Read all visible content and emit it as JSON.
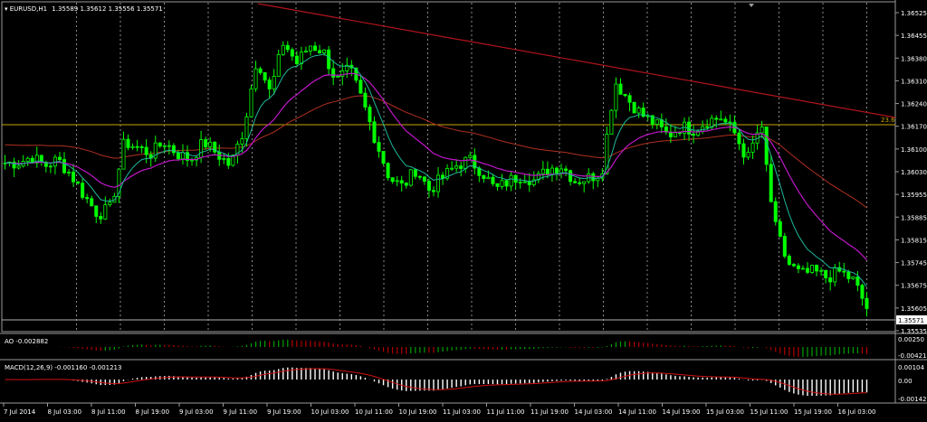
{
  "chart_header": {
    "symbol": "EURUSD,H1",
    "ohlc": "1.35589 1.35612 1.35556 1.35571"
  },
  "price_axis": {
    "labels": [
      "1.36525",
      "1.36455",
      "1.36380",
      "1.36310",
      "1.36240",
      "1.36170",
      "1.36100",
      "1.36030",
      "1.35955",
      "1.35885",
      "1.35815",
      "1.35745",
      "1.35675",
      "1.35605",
      "1.35535"
    ],
    "current_price": "1.35571"
  },
  "fib_label": "23.6",
  "ao": {
    "label": "AO -0.002882",
    "axis_labels": [
      "0.00250",
      "-0.00421"
    ]
  },
  "macd": {
    "label": "MACD(12,26,9) -0.001160 -0.001213",
    "axis_labels": [
      "0.00104",
      "0.00",
      "-0.00142"
    ]
  },
  "time_axis": {
    "labels": [
      "7 Jul 2014",
      "8 Jul 03:00",
      "8 Jul 11:00",
      "8 Jul 19:00",
      "9 Jul 03:00",
      "9 Jul 11:00",
      "9 Jul 19:00",
      "10 Jul 03:00",
      "10 Jul 11:00",
      "10 Jul 19:00",
      "11 Jul 03:00",
      "11 Jul 11:00",
      "11 Jul 19:00",
      "14 Jul 03:00",
      "14 Jul 11:00",
      "14 Jul 19:00",
      "15 Jul 03:00",
      "15 Jul 11:00",
      "15 Jul 19:00",
      "16 Jul 03:00"
    ]
  },
  "colors": {
    "background": "#000000",
    "candle": "#00ff00",
    "trendline": "#b3141c",
    "fib_line": "#c8a400",
    "ma_fast": "#1fb89a",
    "ma_slow": "#c018c8",
    "ma_long": "#b03020",
    "ao_up": "#00a000",
    "ao_down": "#b00000",
    "macd_hist": "#ffffff",
    "macd_signal": "#d01010"
  },
  "chart_data": {
    "type": "candlestick",
    "symbol": "EURUSD",
    "timeframe": "H1",
    "ylim": [
      1.3553,
      1.3655
    ],
    "close_path": [
      1.3605,
      1.3605,
      1.3607,
      1.3604,
      1.3606,
      1.3601,
      1.3594,
      1.3588,
      1.359,
      1.3612,
      1.361,
      1.3608,
      1.3612,
      1.3608,
      1.3606,
      1.3612,
      1.3608,
      1.3604,
      1.3616,
      1.364,
      1.3628,
      1.3645,
      1.3638,
      1.3644,
      1.3642,
      1.3632,
      1.3636,
      1.3625,
      1.3612,
      1.36,
      1.3597,
      1.3603,
      1.3596,
      1.36,
      1.3604,
      1.3606,
      1.3602,
      1.3596,
      1.3599,
      1.3601,
      1.3599,
      1.3603,
      1.3604,
      1.3599,
      1.36,
      1.3602,
      1.3632,
      1.3626,
      1.3621,
      1.3618,
      1.3614,
      1.3617,
      1.3616,
      1.3619,
      1.362,
      1.3615,
      1.3606,
      1.3618,
      1.3585,
      1.3572,
      1.3568,
      1.3569,
      1.3567,
      1.3569,
      1.3566,
      1.3557
    ]
  }
}
